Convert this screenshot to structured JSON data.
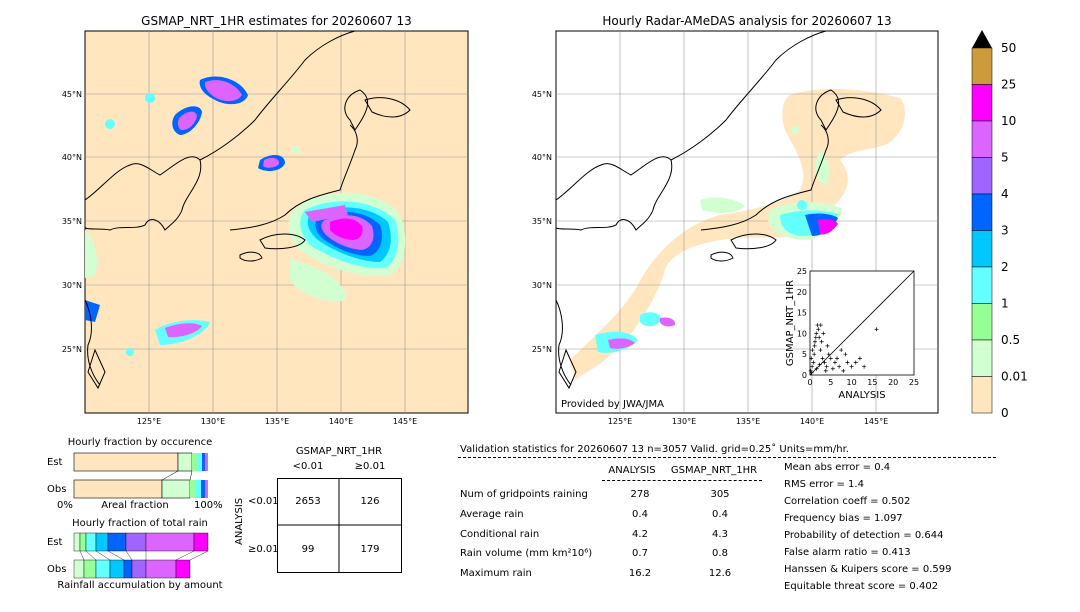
{
  "left_map": {
    "title": "GSMAP_NRT_1HR estimates for 20260607 13",
    "lat_labels": [
      "45°N",
      "40°N",
      "35°N",
      "30°N",
      "25°N"
    ],
    "lon_labels": [
      "125°E",
      "130°E",
      "135°E",
      "140°E",
      "145°E"
    ]
  },
  "right_map": {
    "title": "Hourly Radar-AMeDAS analysis for 20260607 13",
    "lat_labels": [
      "45°N",
      "40°N",
      "35°N",
      "30°N",
      "25°N"
    ],
    "lon_labels": [
      "125°E",
      "130°E",
      "135°E",
      "140°E",
      "145°E"
    ],
    "provider": "Provided by JWA/JMA"
  },
  "colorbar": {
    "labels": [
      "50",
      "25",
      "10",
      "5",
      "4",
      "3",
      "2",
      "1",
      "0.5",
      "0.01",
      "0"
    ],
    "colors": [
      "#cd9a3c",
      "#ff00ff",
      "#dc64ff",
      "#a064ff",
      "#0064ff",
      "#00c8ff",
      "#64ffff",
      "#96ff96",
      "#d2ffd2",
      "#ffe6be"
    ]
  },
  "chart_data": [
    {
      "type": "scatter",
      "xlabel": "ANALYSIS",
      "ylabel": "GSMAP_NRT_1HR",
      "xlim": [
        0,
        25
      ],
      "ylim": [
        0,
        25
      ],
      "x_ticks": [
        "0",
        "5",
        "10",
        "15",
        "20",
        "25"
      ],
      "y_ticks": [
        "0",
        "5",
        "10",
        "15",
        "20",
        "25"
      ],
      "points": [
        [
          0.2,
          1
        ],
        [
          0.5,
          2
        ],
        [
          0.8,
          3
        ],
        [
          1,
          5
        ],
        [
          1.2,
          8
        ],
        [
          1.5,
          10
        ],
        [
          1.8,
          12
        ],
        [
          2,
          11
        ],
        [
          2.2,
          9
        ],
        [
          2.5,
          6
        ],
        [
          3,
          4
        ],
        [
          3.5,
          3
        ],
        [
          4,
          2
        ],
        [
          4.5,
          5
        ],
        [
          5,
          4
        ],
        [
          6,
          3
        ],
        [
          7,
          2
        ],
        [
          8,
          1
        ],
        [
          9,
          3
        ],
        [
          10,
          2
        ],
        [
          12,
          4
        ],
        [
          13,
          2
        ],
        [
          16,
          11
        ],
        [
          0.3,
          4
        ],
        [
          0.6,
          6
        ],
        [
          1.1,
          7
        ],
        [
          2.8,
          8
        ],
        [
          3.2,
          10
        ],
        [
          0.4,
          0.5
        ],
        [
          1.6,
          1.5
        ],
        [
          2.3,
          2.5
        ],
        [
          3.8,
          1
        ],
        [
          5.5,
          1.5
        ],
        [
          6.5,
          4
        ],
        [
          7.5,
          6
        ],
        [
          8.5,
          5
        ],
        [
          11,
          3
        ],
        [
          4.2,
          7
        ],
        [
          2.6,
          12
        ],
        [
          1.4,
          9
        ]
      ]
    },
    {
      "type": "table",
      "title": "GSMAP_NRT_1HR",
      "col_labels": [
        "<0.01",
        "≥0.01"
      ],
      "row_axis": "ANALYSIS",
      "row_labels": [
        "<0.01",
        "≥0.01"
      ],
      "values": [
        [
          2653,
          126
        ],
        [
          99,
          179
        ]
      ]
    },
    {
      "type": "bar",
      "title": "Hourly fraction by occurence",
      "categories": [
        "Est",
        "Obs"
      ],
      "xlabel": "Areal fraction",
      "x_ticks": [
        "0%",
        "100%"
      ]
    },
    {
      "type": "bar",
      "title": "Hourly fraction of total rain",
      "categories": [
        "Est",
        "Obs"
      ],
      "xlabel": "Rainfall accumulation by amount"
    }
  ],
  "validation": {
    "header": "Validation statistics for 20260607 13  n=3057 Valid. grid=0.25˚ Units=mm/hr.",
    "col_analysis": "ANALYSIS",
    "col_gsmap": "GSMAP_NRT_1HR",
    "rows": [
      {
        "label": "Num of gridpoints raining",
        "a": "278",
        "g": "305"
      },
      {
        "label": "Average rain",
        "a": "0.4",
        "g": "0.4"
      },
      {
        "label": "Conditional rain",
        "a": "4.2",
        "g": "4.3"
      },
      {
        "label": "Rain volume (mm km²10⁶)",
        "a": "0.7",
        "g": "0.8"
      },
      {
        "label": "Maximum rain",
        "a": "16.2",
        "g": "12.6"
      }
    ],
    "scores": [
      "Mean abs error =    0.4",
      "RMS error =    1.4",
      "Correlation coeff =  0.502",
      "Frequency bias =  1.097",
      "Probability of detection =  0.644",
      "False alarm ratio =  0.413",
      "Hanssen & Kuipers score =  0.599",
      "Equitable threat score =  0.402"
    ]
  }
}
